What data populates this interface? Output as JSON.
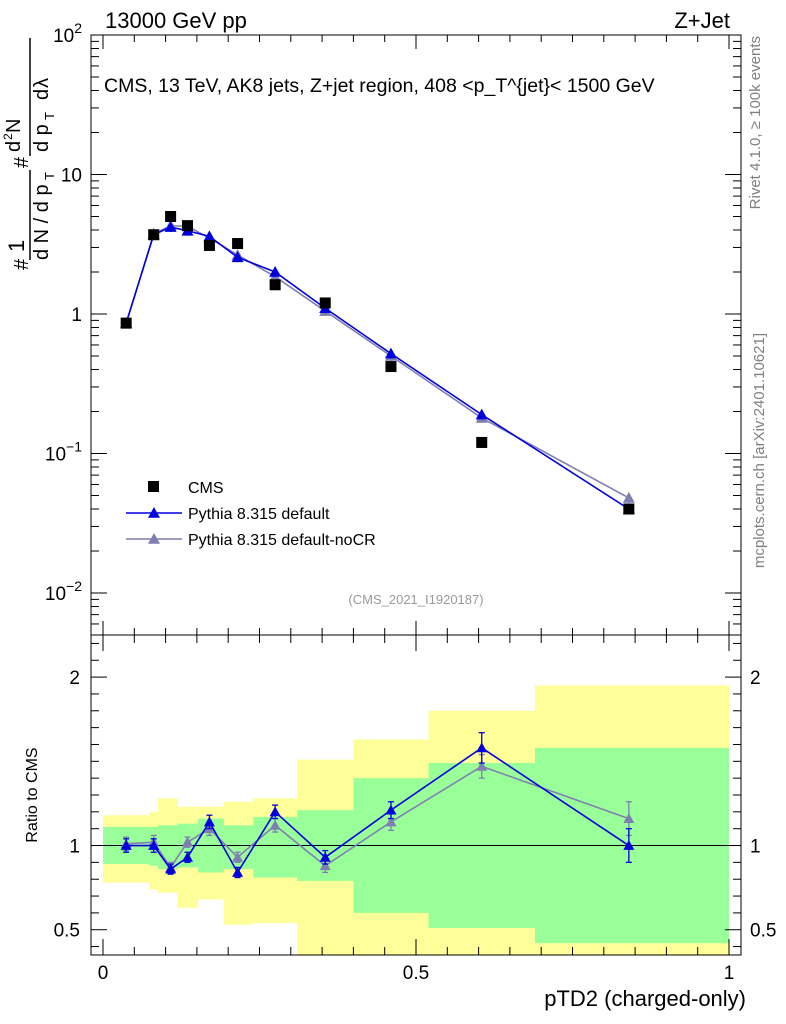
{
  "header": {
    "left": "13000 GeV pp",
    "right": "Z+Jet"
  },
  "side": {
    "rivet": "Rivet 4.1.0, ≥ 100k events",
    "mcplots": "mcplots.cern.ch [arXiv:2401.10621]"
  },
  "colors": {
    "data": "#000000",
    "default": "#0000dd",
    "nocr": "#7f7fb2",
    "band_green": "#99ff99",
    "band_yellow": "#ffff99"
  },
  "chart_data": [
    {
      "type": "line",
      "title": "CMS, 13 TeV, AK8 jets, Z+jet region, 408 <p_T^{jet}< 1500 GeV",
      "ylabel": "1/(dN/dp_T) · d²N/(dp_T dλ)",
      "scale": "log",
      "ylim": [
        0.005,
        100
      ],
      "yticks": [
        {
          "v": 0.01,
          "label": "10",
          "exp": "−2"
        },
        {
          "v": 0.1,
          "label": "10",
          "exp": "−1"
        },
        {
          "v": 1,
          "label": "1",
          "exp": ""
        },
        {
          "v": 10,
          "label": "10",
          "exp": ""
        },
        {
          "v": 100,
          "label": "10",
          "exp": "2"
        }
      ],
      "watermark": "(CMS_2021_I1920187)",
      "x": [
        0.037,
        0.081,
        0.108,
        0.135,
        0.17,
        0.215,
        0.275,
        0.355,
        0.46,
        0.605,
        0.84
      ],
      "series": [
        {
          "name": "CMS",
          "marker": "square",
          "values": [
            0.86,
            3.7,
            5.0,
            4.3,
            3.1,
            3.2,
            1.62,
            1.2,
            0.42,
            0.12,
            0.04
          ]
        },
        {
          "name": "Pythia 8.315 default",
          "marker": "triangle",
          "values": [
            0.86,
            3.7,
            4.2,
            3.95,
            3.6,
            2.55,
            2.0,
            1.1,
            0.52,
            0.19,
            0.04
          ]
        },
        {
          "name": "Pythia 8.315 default-noCR",
          "marker": "triangle",
          "values": [
            0.86,
            3.75,
            4.3,
            4.25,
            3.5,
            2.65,
            1.85,
            1.05,
            0.5,
            0.18,
            0.048
          ]
        }
      ],
      "legend": [
        "CMS",
        "Pythia 8.315 default",
        "Pythia 8.315 default-noCR"
      ],
      "legend_position": "lower-left"
    },
    {
      "type": "line",
      "ylabel": "Ratio to CMS",
      "xlabel": "pTD2 (charged-only)",
      "xlim": [
        0,
        1
      ],
      "ylim": [
        0.35,
        2.25
      ],
      "xticks": [
        {
          "v": 0,
          "label": "0"
        },
        {
          "v": 0.5,
          "label": "0.5"
        },
        {
          "v": 1,
          "label": "1"
        }
      ],
      "yticks": [
        {
          "v": 0.5,
          "label": "0.5"
        },
        {
          "v": 1,
          "label": "1"
        },
        {
          "v": 2,
          "label": "2"
        }
      ],
      "bins": [
        0,
        0.074,
        0.088,
        0.119,
        0.152,
        0.193,
        0.24,
        0.31,
        0.4,
        0.52,
        0.69,
        1.0
      ],
      "band_green_lo": [
        0.89,
        0.88,
        0.86,
        0.87,
        0.84,
        0.86,
        0.81,
        0.79,
        0.6,
        0.51,
        0.42
      ],
      "band_green_hi": [
        1.11,
        1.11,
        1.12,
        1.13,
        1.16,
        1.12,
        1.17,
        1.21,
        1.4,
        1.49,
        1.58
      ],
      "band_yellow_lo": [
        0.78,
        0.74,
        0.72,
        0.63,
        0.68,
        0.53,
        0.54,
        0.33,
        0.3,
        0.3,
        0.3
      ],
      "band_yellow_hi": [
        1.18,
        1.2,
        1.28,
        1.23,
        1.23,
        1.26,
        1.28,
        1.51,
        1.63,
        1.8,
        1.95
      ],
      "x": [
        0.037,
        0.081,
        0.108,
        0.135,
        0.17,
        0.215,
        0.275,
        0.355,
        0.46,
        0.605,
        0.84
      ],
      "series": [
        {
          "name": "Pythia 8.315 default",
          "marker": "triangle",
          "values": [
            1.0,
            1.0,
            0.86,
            0.93,
            1.14,
            0.84,
            1.2,
            0.93,
            1.21,
            1.58,
            1.0
          ],
          "errors": [
            0.04,
            0.04,
            0.03,
            0.03,
            0.04,
            0.03,
            0.04,
            0.04,
            0.05,
            0.09,
            0.1
          ]
        },
        {
          "name": "Pythia 8.315 default-noCR",
          "marker": "triangle",
          "values": [
            1.01,
            1.02,
            0.87,
            1.02,
            1.1,
            0.93,
            1.12,
            0.88,
            1.14,
            1.47,
            1.16
          ],
          "errors": [
            0.04,
            0.04,
            0.03,
            0.03,
            0.04,
            0.03,
            0.04,
            0.04,
            0.05,
            0.07,
            0.1
          ]
        }
      ]
    }
  ]
}
